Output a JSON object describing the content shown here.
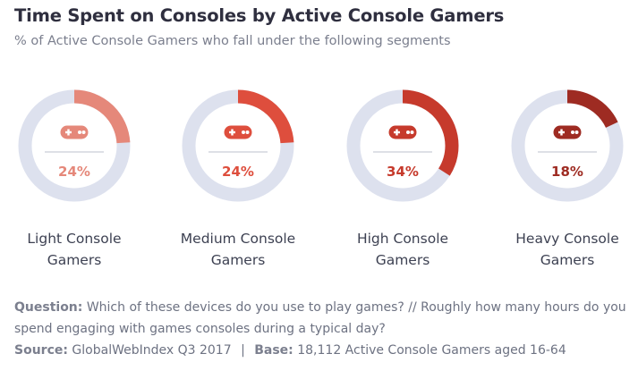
{
  "chart_data": {
    "type": "donut",
    "title": "Time Spent on Consoles by Active Console Gamers",
    "subtitle": "% of Active Console Gamers who fall under the following segments",
    "segments": [
      {
        "label_line1": "Light Console",
        "label_line2": "Gamers",
        "value": 24,
        "display": "24%",
        "color": "#e5887a"
      },
      {
        "label_line1": "Medium Console",
        "label_line2": "Gamers",
        "value": 24,
        "display": "24%",
        "color": "#de4e3d"
      },
      {
        "label_line1": "High Console",
        "label_line2": "Gamers",
        "value": 34,
        "display": "34%",
        "color": "#c63a2c"
      },
      {
        "label_line1": "Heavy Console",
        "label_line2": "Gamers",
        "value": 18,
        "display": "18%",
        "color": "#9e2b22"
      }
    ],
    "track_color": "#dde1ee"
  },
  "footer": {
    "question_label": "Question:",
    "question_text": "Which of these devices do you use to play games? // Roughly how many hours do you spend engaging with games consoles during a typical day?",
    "source_label": "Source:",
    "source_text": "GlobalWebIndex Q3 2017",
    "separator": "|",
    "base_label": "Base:",
    "base_text": "18,112 Active Console Gamers aged 16-64"
  },
  "icons": {
    "segment_icon": "gamepad-icon"
  }
}
